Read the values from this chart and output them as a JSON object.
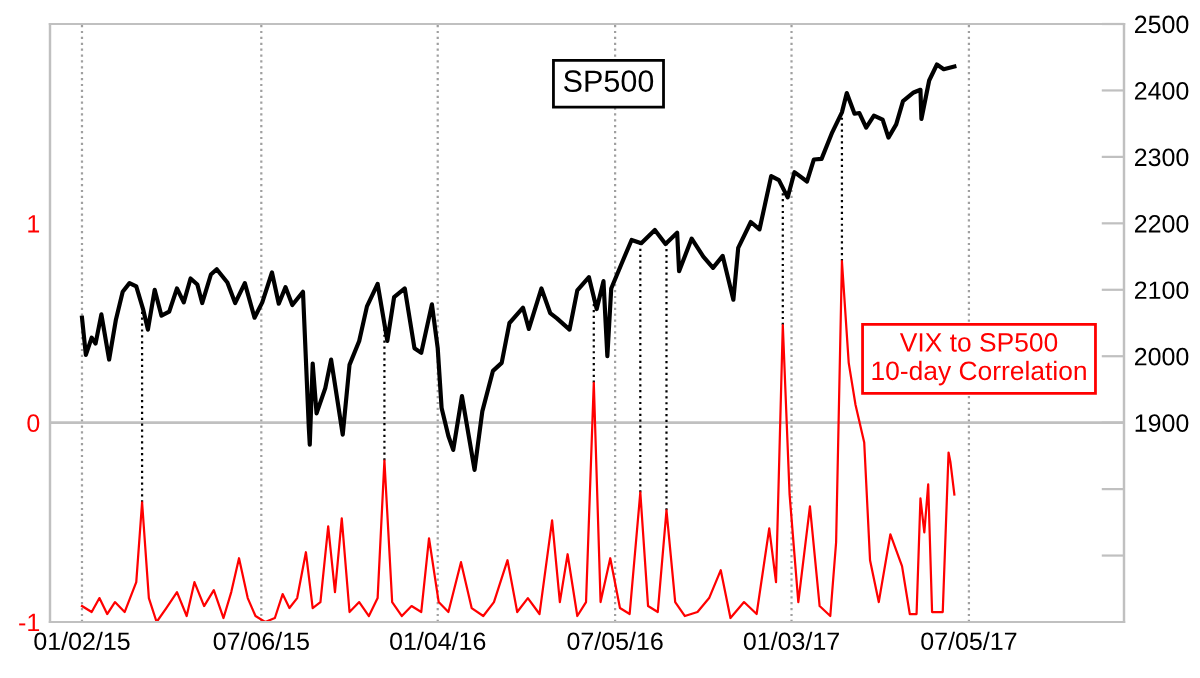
{
  "chart_data": {
    "type": "line",
    "xlim": [
      "2014-11-30",
      "2017-12-12"
    ],
    "xticks": [
      {
        "value": "2015-01-02",
        "label": "01/02/15"
      },
      {
        "value": "2015-07-06",
        "label": "07/06/15"
      },
      {
        "value": "2016-01-04",
        "label": "01/04/16"
      },
      {
        "value": "2016-07-05",
        "label": "07/05/16"
      },
      {
        "value": "2017-01-03",
        "label": "01/03/17"
      },
      {
        "value": "2017-07-05",
        "label": "07/05/17"
      }
    ],
    "ylim": [
      -1,
      2
    ],
    "yticks": [
      -1,
      0,
      1
    ],
    "y2lim": [
      1600,
      2500
    ],
    "y2ticks": [
      {
        "value": 1700,
        "label": null
      },
      {
        "value": 1800,
        "label": null
      },
      1900,
      2000,
      2100,
      2200,
      2300,
      2400,
      2500
    ],
    "grid": "x",
    "ref_lines": [
      {
        "axis": "y",
        "value": 0,
        "color": "#c0c0c0",
        "line_style": "solid"
      },
      {
        "axis": "x",
        "value": "2015-03-05",
        "color": "#000000",
        "line_style": "dotted"
      },
      {
        "axis": "x",
        "value": "2015-11-10",
        "color": "#000000",
        "line_style": "dotted"
      },
      {
        "axis": "x",
        "value": "2016-06-13",
        "color": "#000000",
        "line_style": "dotted"
      },
      {
        "axis": "x",
        "value": "2016-07-31",
        "color": "#000000",
        "line_style": "dotted"
      },
      {
        "axis": "x",
        "value": "2016-08-27",
        "color": "#000000",
        "line_style": "dotted"
      },
      {
        "axis": "x",
        "value": "2016-12-25",
        "color": "#000000",
        "line_style": "dotted"
      },
      {
        "axis": "x",
        "value": "2017-02-24",
        "color": "#000000",
        "line_style": "dotted"
      }
    ],
    "series": [
      {
        "name": "VIX to SP500\n10-day Correlation",
        "color": "#ff0000",
        "axis": "y",
        "x": [
          "2015-01-02",
          "2015-01-12",
          "2015-01-20",
          "2015-01-28",
          "2015-02-05",
          "2015-02-15",
          "2015-02-27",
          "2015-03-05",
          "2015-03-12",
          "2015-03-20",
          "2015-03-30",
          "2015-04-10",
          "2015-04-20",
          "2015-04-28",
          "2015-05-08",
          "2015-05-18",
          "2015-05-28",
          "2015-06-05",
          "2015-06-13",
          "2015-06-22",
          "2015-06-30",
          "2015-07-10",
          "2015-07-20",
          "2015-07-28",
          "2015-08-04",
          "2015-08-12",
          "2015-08-21",
          "2015-08-28",
          "2015-09-05",
          "2015-09-13",
          "2015-09-20",
          "2015-09-27",
          "2015-10-05",
          "2015-10-15",
          "2015-10-25",
          "2015-11-03",
          "2015-11-10",
          "2015-11-18",
          "2015-11-28",
          "2015-12-08",
          "2015-12-18",
          "2015-12-26",
          "2016-01-05",
          "2016-01-15",
          "2016-01-28",
          "2016-02-08",
          "2016-02-20",
          "2016-03-02",
          "2016-03-16",
          "2016-03-26",
          "2016-04-06",
          "2016-04-18",
          "2016-05-01",
          "2016-05-09",
          "2016-05-17",
          "2016-05-27",
          "2016-06-05",
          "2016-06-13",
          "2016-06-20",
          "2016-06-30",
          "2016-07-10",
          "2016-07-20",
          "2016-07-31",
          "2016-08-08",
          "2016-08-18",
          "2016-08-27",
          "2016-09-05",
          "2016-09-15",
          "2016-09-28",
          "2016-10-10",
          "2016-10-22",
          "2016-11-01",
          "2016-11-15",
          "2016-11-28",
          "2016-12-11",
          "2016-12-18",
          "2016-12-25",
          "2017-01-01",
          "2017-01-10",
          "2017-01-22",
          "2017-02-01",
          "2017-02-12",
          "2017-02-18",
          "2017-02-24",
          "2017-03-03",
          "2017-03-10",
          "2017-03-19",
          "2017-03-25",
          "2017-04-03",
          "2017-04-15",
          "2017-04-27",
          "2017-05-05",
          "2017-05-12",
          "2017-05-16",
          "2017-05-20",
          "2017-05-24",
          "2017-05-28",
          "2017-06-08",
          "2017-06-14",
          "2017-06-16",
          "2017-06-20"
        ],
        "values": [
          -0.92,
          -0.95,
          -0.88,
          -0.96,
          -0.9,
          -0.95,
          -0.8,
          -0.4,
          -0.88,
          -1.0,
          -0.93,
          -0.85,
          -0.97,
          -0.8,
          -0.92,
          -0.84,
          -0.98,
          -0.85,
          -0.68,
          -0.88,
          -0.97,
          -1.0,
          -0.98,
          -0.86,
          -0.93,
          -0.88,
          -0.65,
          -0.93,
          -0.9,
          -0.52,
          -0.85,
          -0.48,
          -0.95,
          -0.9,
          -0.97,
          -0.88,
          -0.19,
          -0.9,
          -0.97,
          -0.92,
          -0.95,
          -0.58,
          -0.9,
          -0.95,
          -0.7,
          -0.93,
          -0.97,
          -0.9,
          -0.69,
          -0.95,
          -0.88,
          -0.96,
          -0.49,
          -0.9,
          -0.66,
          -0.97,
          -0.9,
          0.2,
          -0.9,
          -0.68,
          -0.93,
          -0.96,
          -0.35,
          -0.92,
          -0.95,
          -0.44,
          -0.9,
          -0.97,
          -0.95,
          -0.88,
          -0.74,
          -0.98,
          -0.9,
          -0.96,
          -0.53,
          -0.8,
          0.49,
          -0.36,
          -0.9,
          -0.42,
          -0.92,
          -0.97,
          -0.6,
          0.81,
          0.3,
          0.09,
          -0.1,
          -0.69,
          -0.9,
          -0.56,
          -0.72,
          -0.96,
          -0.96,
          -0.38,
          -0.55,
          -0.31,
          -0.95,
          -0.95,
          -0.15,
          -0.2,
          -0.36
        ]
      },
      {
        "name": "SP500",
        "color": "#000000",
        "axis": "y2",
        "x": [
          "2015-01-02",
          "2015-01-06",
          "2015-01-12",
          "2015-01-16",
          "2015-01-22",
          "2015-01-30",
          "2015-02-06",
          "2015-02-13",
          "2015-02-20",
          "2015-02-27",
          "2015-03-06",
          "2015-03-11",
          "2015-03-18",
          "2015-03-25",
          "2015-04-02",
          "2015-04-10",
          "2015-04-17",
          "2015-04-24",
          "2015-05-01",
          "2015-05-06",
          "2015-05-15",
          "2015-05-21",
          "2015-06-01",
          "2015-06-09",
          "2015-06-19",
          "2015-06-29",
          "2015-07-07",
          "2015-07-17",
          "2015-07-24",
          "2015-07-31",
          "2015-08-07",
          "2015-08-18",
          "2015-08-24",
          "2015-08-25",
          "2015-08-28",
          "2015-09-01",
          "2015-09-10",
          "2015-09-16",
          "2015-09-28",
          "2015-10-05",
          "2015-10-15",
          "2015-10-23",
          "2015-11-03",
          "2015-11-13",
          "2015-11-20",
          "2015-12-01",
          "2015-12-11",
          "2015-12-18",
          "2015-12-29",
          "2016-01-04",
          "2016-01-08",
          "2016-01-15",
          "2016-01-20",
          "2016-01-29",
          "2016-02-05",
          "2016-02-11",
          "2016-02-19",
          "2016-03-01",
          "2016-03-10",
          "2016-03-18",
          "2016-04-01",
          "2016-04-07",
          "2016-04-20",
          "2016-04-29",
          "2016-05-06",
          "2016-05-19",
          "2016-05-27",
          "2016-06-08",
          "2016-06-16",
          "2016-06-23",
          "2016-06-27",
          "2016-07-01",
          "2016-07-11",
          "2016-07-22",
          "2016-08-01",
          "2016-08-15",
          "2016-08-26",
          "2016-09-07",
          "2016-09-09",
          "2016-09-22",
          "2016-10-04",
          "2016-10-14",
          "2016-10-24",
          "2016-11-04",
          "2016-11-09",
          "2016-11-22",
          "2016-12-01",
          "2016-12-13",
          "2016-12-21",
          "2016-12-30",
          "2017-01-06",
          "2017-01-19",
          "2017-01-26",
          "2017-02-03",
          "2017-02-14",
          "2017-02-24",
          "2017-03-01",
          "2017-03-09",
          "2017-03-14",
          "2017-03-21",
          "2017-03-29",
          "2017-04-07",
          "2017-04-13",
          "2017-04-21",
          "2017-04-28",
          "2017-05-09",
          "2017-05-16",
          "2017-05-17",
          "2017-05-25",
          "2017-06-02",
          "2017-06-09",
          "2017-06-20"
        ],
        "values": [
          2058,
          2002,
          2028,
          2019,
          2063,
          1995,
          2055,
          2097,
          2110,
          2105,
          2071,
          2040,
          2100,
          2061,
          2067,
          2102,
          2081,
          2117,
          2108,
          2080,
          2123,
          2131,
          2111,
          2080,
          2110,
          2058,
          2081,
          2126,
          2079,
          2104,
          2077,
          2097,
          1893,
          1867,
          1989,
          1914,
          1952,
          1995,
          1882,
          1987,
          2023,
          2075,
          2109,
          2023,
          2089,
          2102,
          2012,
          2005,
          2078,
          2012,
          1922,
          1880,
          1859,
          1940,
          1880,
          1829,
          1917,
          1978,
          1990,
          2050,
          2073,
          2041,
          2102,
          2065,
          2057,
          2040,
          2099,
          2119,
          2071,
          2113,
          2000,
          2102,
          2137,
          2175,
          2170,
          2190,
          2169,
          2186,
          2128,
          2177,
          2150,
          2133,
          2151,
          2085,
          2163,
          2202,
          2191,
          2271,
          2265,
          2239,
          2277,
          2263,
          2296,
          2297,
          2337,
          2367,
          2396,
          2365,
          2366,
          2344,
          2362,
          2356,
          2329,
          2349,
          2384,
          2397,
          2401,
          2357,
          2415,
          2439,
          2432,
          2436
        ]
      }
    ]
  }
}
